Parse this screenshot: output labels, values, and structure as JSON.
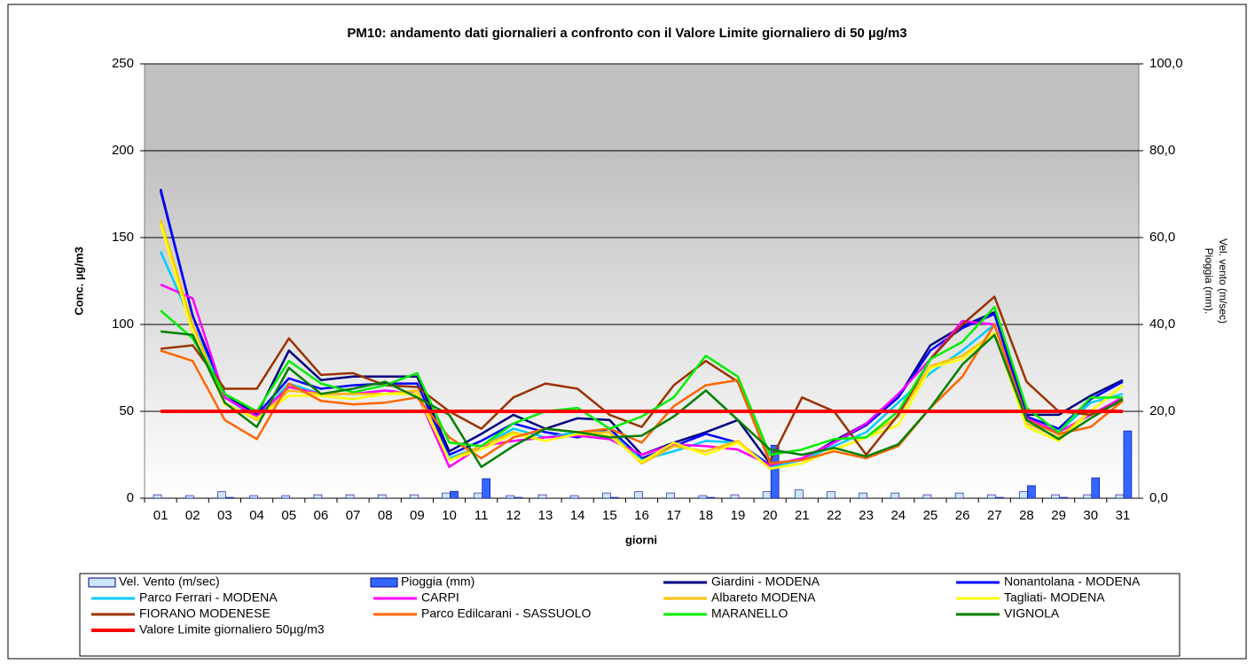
{
  "chart_data": {
    "type": "line",
    "title": "PM10: andamento  dati giornalieri a confronto con il Valore Limite giornaliero di 50 µg/m3",
    "y_label": "Conc. µg/m3",
    "y2_label": [
      "Pioggia (mm).",
      "Vel. vento (m/sec)"
    ],
    "x_label": "giorni",
    "categories": [
      "01",
      "02",
      "03",
      "04",
      "05",
      "06",
      "07",
      "08",
      "09",
      "10",
      "11",
      "12",
      "13",
      "14",
      "15",
      "16",
      "17",
      "18",
      "19",
      "20",
      "21",
      "22",
      "23",
      "24",
      "25",
      "26",
      "27",
      "28",
      "29",
      "30",
      "31"
    ],
    "ylim": [
      0,
      250
    ],
    "yticks": [
      0,
      50,
      100,
      150,
      200,
      250
    ],
    "y2lim": [
      0,
      100
    ],
    "y2ticks": [
      {
        "value": 0,
        "label": "0,0"
      },
      {
        "value": 20,
        "label": "20,0"
      },
      {
        "value": 40,
        "label": "40,0"
      },
      {
        "value": 60,
        "label": "60,0"
      },
      {
        "value": 80,
        "label": "80,0"
      },
      {
        "value": 100,
        "label": "100,0"
      }
    ],
    "grid": true,
    "series": [
      {
        "name": "Vel. Vento (m/sec)",
        "type": "bar",
        "axis": "y2",
        "color": "#cce6ff",
        "values": [
          0.8,
          0.6,
          1.5,
          0.6,
          0.6,
          0.8,
          0.8,
          0.8,
          0.8,
          1.2,
          1.2,
          0.6,
          0.8,
          0.6,
          1.2,
          1.5,
          1.2,
          0.6,
          0.8,
          1.5,
          1.9,
          1.5,
          1.2,
          1.2,
          0.8,
          1.2,
          0.8,
          1.5,
          0.8,
          0.8,
          0.8
        ]
      },
      {
        "name": "Pioggia (mm)",
        "type": "bar",
        "axis": "y2",
        "color": "#3366ff",
        "values": [
          0,
          0,
          0.2,
          0,
          0,
          0,
          0,
          0,
          0,
          1.6,
          4.5,
          0.2,
          0,
          0,
          0.2,
          0,
          0,
          0.2,
          0,
          12.2,
          0,
          0,
          0,
          0,
          0,
          0,
          0.2,
          2.9,
          0.2,
          4.7,
          15.5
        ]
      },
      {
        "name": "Giardini  - MODENA",
        "type": "line",
        "color": "#000080",
        "values": [
          177,
          105,
          60,
          48,
          85,
          68,
          70,
          70,
          70,
          27,
          37,
          48,
          40,
          46,
          45,
          25,
          32,
          38,
          45,
          20,
          22,
          33,
          43,
          58,
          88,
          99,
          107,
          48,
          48,
          59,
          68
        ]
      },
      {
        "name": "Nonantolana - MODENA",
        "type": "line",
        "color": "#0000ff",
        "values": [
          178,
          105,
          58,
          48,
          69,
          63,
          65,
          66,
          66,
          25,
          33,
          43,
          38,
          35,
          40,
          23,
          30,
          37,
          32,
          19,
          22,
          32,
          42,
          58,
          85,
          98,
          106,
          47,
          40,
          57,
          67
        ]
      },
      {
        "name": "Parco Ferrari - MODENA",
        "type": "line",
        "color": "#00ccff",
        "values": [
          142,
          100,
          58,
          46,
          66,
          60,
          60,
          62,
          60,
          23,
          30,
          40,
          35,
          38,
          38,
          22,
          27,
          33,
          32,
          18,
          22,
          30,
          38,
          55,
          72,
          85,
          100,
          45,
          38,
          55,
          60
        ]
      },
      {
        "name": "CARPI",
        "type": "line",
        "color": "#ff00ff",
        "values": [
          123,
          115,
          58,
          47,
          64,
          60,
          60,
          62,
          60,
          18,
          30,
          33,
          35,
          36,
          34,
          25,
          31,
          30,
          28,
          19,
          23,
          32,
          43,
          60,
          80,
          102,
          100,
          46,
          38,
          48,
          58
        ]
      },
      {
        "name": "Albareto MODENA",
        "type": "line",
        "color": "#ffc000",
        "values": [
          160,
          100,
          55,
          45,
          62,
          60,
          60,
          60,
          62,
          22,
          30,
          38,
          33,
          37,
          38,
          20,
          30,
          27,
          33,
          17,
          20,
          28,
          35,
          47,
          76,
          82,
          95,
          43,
          35,
          50,
          65
        ]
      },
      {
        "name": "Tagliati- MODENA",
        "type": "line",
        "color": "#ffff00",
        "values": [
          158,
          95,
          54,
          46,
          59,
          59,
          57,
          60,
          60,
          22,
          28,
          37,
          33,
          37,
          36,
          21,
          32,
          25,
          32,
          17,
          20,
          28,
          35,
          42,
          75,
          80,
          95,
          41,
          33,
          50,
          65
        ]
      },
      {
        "name": "FIORANO MODENESE",
        "type": "line",
        "color": "#993300",
        "values": [
          86,
          88,
          63,
          63,
          92,
          71,
          72,
          65,
          64,
          50,
          40,
          58,
          66,
          63,
          48,
          41,
          65,
          79,
          67,
          21,
          58,
          50,
          25,
          48,
          80,
          100,
          116,
          67,
          50,
          48,
          56
        ]
      },
      {
        "name": "Parco Edilcarani - SASSUOLO",
        "type": "line",
        "color": "#ff6600",
        "values": [
          85,
          79,
          45,
          34,
          66,
          56,
          54,
          55,
          58,
          35,
          23,
          35,
          40,
          38,
          40,
          32,
          53,
          65,
          68,
          20,
          22,
          27,
          23,
          30,
          52,
          70,
          100,
          45,
          37,
          41,
          56
        ]
      },
      {
        "name": "MARANELLO",
        "type": "line",
        "color": "#00ee00",
        "values": [
          108,
          92,
          60,
          50,
          79,
          66,
          61,
          65,
          72,
          32,
          30,
          43,
          50,
          52,
          40,
          47,
          58,
          82,
          70,
          25,
          28,
          34,
          35,
          50,
          80,
          90,
          110,
          52,
          38,
          58,
          58
        ]
      },
      {
        "name": "VIGNOLA",
        "type": "line",
        "color": "#008000",
        "values": [
          96,
          94,
          55,
          41,
          75,
          60,
          63,
          67,
          58,
          48,
          18,
          30,
          40,
          38,
          35,
          36,
          47,
          62,
          45,
          28,
          25,
          29,
          24,
          31,
          52,
          77,
          94,
          45,
          34,
          46,
          57
        ]
      },
      {
        "name": "Valore Limite giornaliero 50µg/m3",
        "type": "line",
        "color": "#ff0000",
        "width": 4,
        "values": [
          50,
          50,
          50,
          50,
          50,
          50,
          50,
          50,
          50,
          50,
          50,
          50,
          50,
          50,
          50,
          50,
          50,
          50,
          50,
          50,
          50,
          50,
          50,
          50,
          50,
          50,
          50,
          50,
          50,
          50,
          50
        ]
      }
    ]
  }
}
